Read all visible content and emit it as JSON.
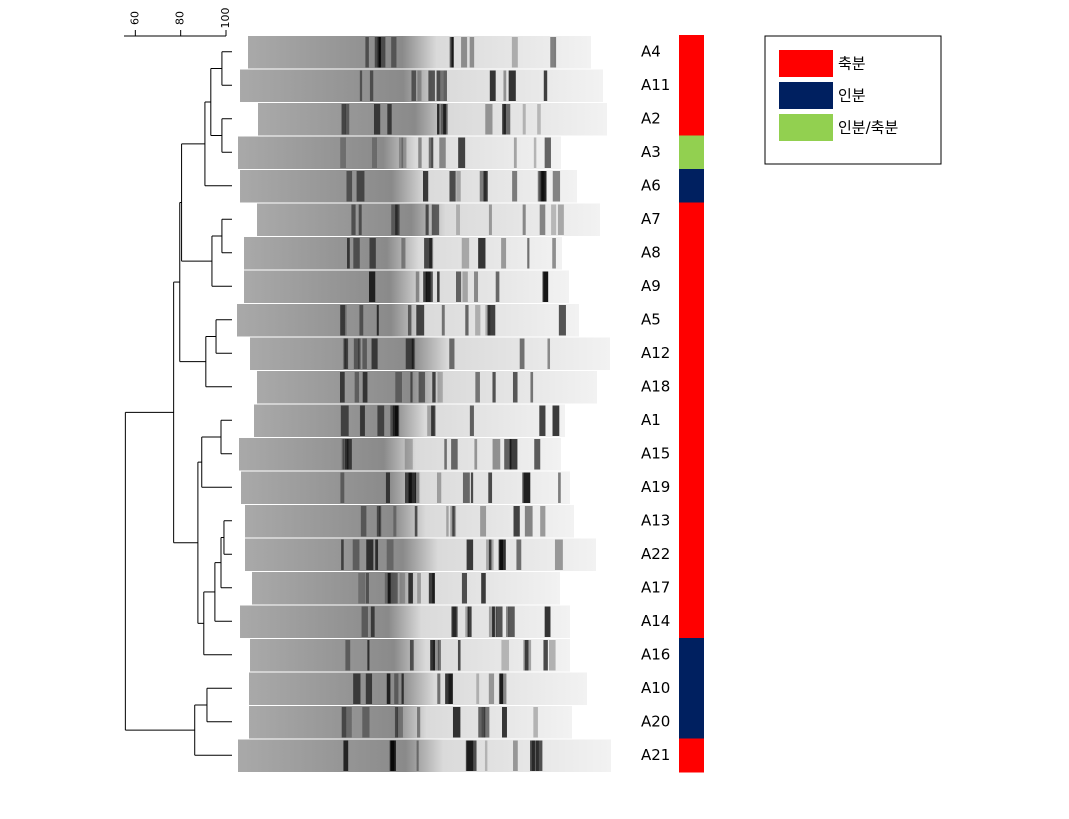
{
  "scale": {
    "ticks": [
      60,
      80,
      100
    ],
    "lim": [
      55,
      100
    ]
  },
  "legend": [
    {
      "label": "축분",
      "color": "#ff0000"
    },
    {
      "label": "인분",
      "color": "#002060"
    },
    {
      "label": "인분/축분",
      "color": "#92d050"
    }
  ],
  "tree": {
    "similarity": 55.6,
    "children": [
      {
        "similarity": 76.9,
        "children": [
          {
            "similarity": 79.6,
            "children": [
              {
                "similarity": 80.4,
                "children": [
                  {
                    "similarity": 90.7,
                    "children": [
                      {
                        "similarity": 93.3,
                        "children": [
                          {
                            "similarity": 98.2,
                            "children": [
                              {
                                "label": "A4",
                                "group": "축분"
                              },
                              {
                                "label": "A11",
                                "group": "축분"
                              }
                            ]
                          },
                          {
                            "similarity": 98.2,
                            "children": [
                              {
                                "label": "A2",
                                "group": "축분"
                              },
                              {
                                "label": "A3",
                                "group": "인분/축분"
                              }
                            ]
                          }
                        ]
                      },
                      {
                        "label": "A6",
                        "group": "인분"
                      }
                    ]
                  },
                  {
                    "similarity": 93.8,
                    "children": [
                      {
                        "similarity": 98.2,
                        "children": [
                          {
                            "label": "A7",
                            "group": "축분"
                          },
                          {
                            "label": "A8",
                            "group": "축분"
                          }
                        ]
                      },
                      {
                        "label": "A9",
                        "group": "축분"
                      }
                    ]
                  }
                ]
              },
              {
                "similarity": 91.1,
                "children": [
                  {
                    "similarity": 95.6,
                    "children": [
                      {
                        "label": "A5",
                        "group": "축분"
                      },
                      {
                        "label": "A12",
                        "group": "축분"
                      }
                    ]
                  },
                  {
                    "label": "A18",
                    "group": "축분"
                  }
                ]
              }
            ]
          },
          {
            "similarity": 87.6,
            "children": [
              {
                "similarity": 89.3,
                "children": [
                  {
                    "similarity": 97.8,
                    "children": [
                      {
                        "label": "A1",
                        "group": "축분"
                      },
                      {
                        "label": "A15",
                        "group": "축분"
                      }
                    ]
                  },
                  {
                    "label": "A19",
                    "group": "축분"
                  }
                ]
              },
              {
                "similarity": 90.2,
                "children": [
                  {
                    "similarity": 95.1,
                    "children": [
                      {
                        "similarity": 97.8,
                        "children": [
                          {
                            "similarity": 99.1,
                            "children": [
                              {
                                "label": "A13",
                                "group": "축분"
                              },
                              {
                                "label": "A22",
                                "group": "축분"
                              }
                            ]
                          },
                          {
                            "label": "A17",
                            "group": "축분"
                          }
                        ]
                      },
                      {
                        "label": "A14",
                        "group": "축분"
                      }
                    ]
                  },
                  {
                    "label": "A16",
                    "group": "인분"
                  }
                ]
              }
            ]
          }
        ]
      },
      {
        "similarity": 86.2,
        "children": [
          {
            "similarity": 91.6,
            "children": [
              {
                "label": "A10",
                "group": "인분"
              },
              {
                "label": "A20",
                "group": "인분"
              }
            ]
          },
          {
            "label": "A21",
            "group": "축분"
          }
        ]
      }
    ]
  }
}
